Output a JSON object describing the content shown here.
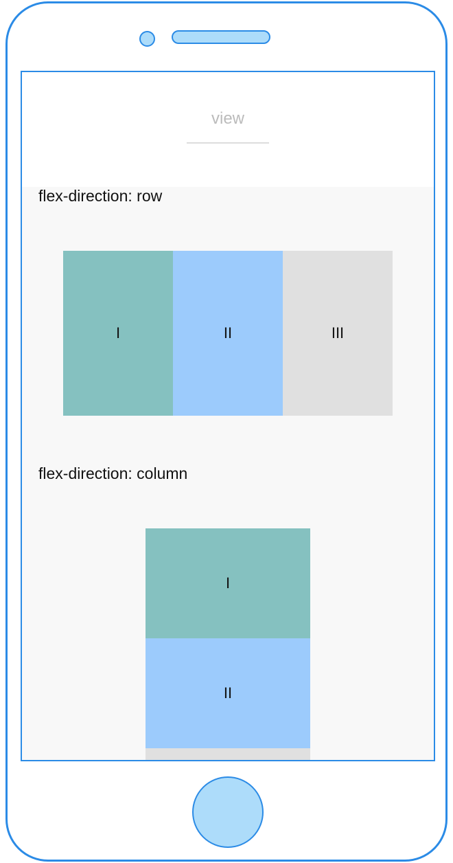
{
  "header": {
    "title": "view"
  },
  "sections": [
    {
      "title": "flex-direction: row",
      "items": [
        "I",
        "II",
        "III"
      ]
    },
    {
      "title": "flex-direction: column",
      "items": [
        "I",
        "II"
      ]
    }
  ]
}
